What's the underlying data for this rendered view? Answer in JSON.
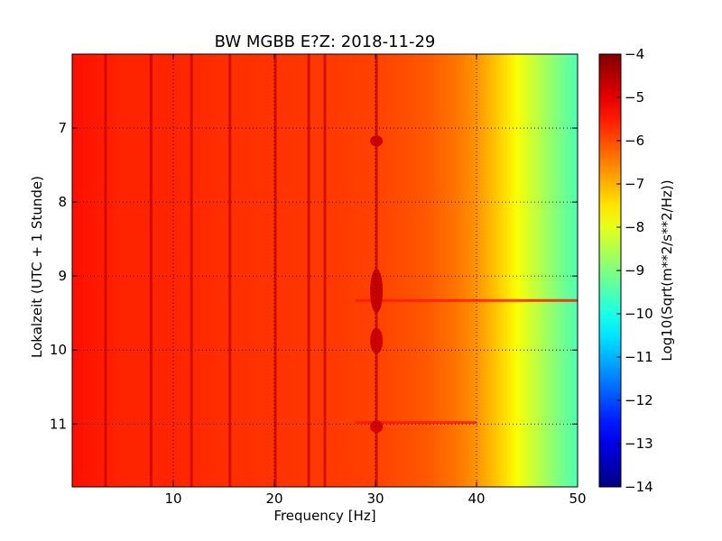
{
  "chart_data": {
    "type": "heatmap",
    "title": "BW MGBB E?Z: 2018-11-29",
    "xlabel": "Frequency [Hz]",
    "ylabel": "Lokalzeit (UTC + 1 Stunde)",
    "xlim": [
      0,
      50
    ],
    "ylim": [
      11.85,
      6.0
    ],
    "y_axis_inverted": true,
    "x_ticks": [
      10,
      20,
      30,
      40,
      50
    ],
    "y_ticks": [
      7,
      8,
      9,
      10,
      11
    ],
    "grid": true,
    "colorbar": {
      "label": "Log10(Sqrt(m**2/s**2/Hz))",
      "colormap": "jet",
      "range": [
        -14,
        -4
      ],
      "ticks": [
        -4,
        -5,
        -6,
        -7,
        -8,
        -9,
        -10,
        -11,
        -12,
        -13,
        -14
      ]
    },
    "frequency_profile": {
      "frequency_hz": [
        0,
        5,
        10,
        15,
        20,
        25,
        30,
        35,
        38,
        40,
        42,
        44,
        46,
        48,
        50
      ],
      "level_log10": [
        -5.4,
        -5.6,
        -5.6,
        -5.7,
        -5.75,
        -5.8,
        -5.9,
        -6.1,
        -6.4,
        -6.7,
        -7.2,
        -7.8,
        -8.4,
        -9.0,
        -9.5
      ]
    },
    "spectral_lines_hz": [
      3.3,
      7.8,
      11.8,
      15.6,
      20.1,
      23.4,
      25.0,
      30.1
    ],
    "transient_features": [
      {
        "freq_hz": 30.1,
        "time_start": 7.1,
        "time_end": 7.25,
        "level_log10": -4.8
      },
      {
        "freq_hz": 30.1,
        "time_start": 8.9,
        "time_end": 9.5,
        "level_log10": -4.7
      },
      {
        "freq_hz": 30.1,
        "time_start": 9.7,
        "time_end": 10.05,
        "level_log10": -4.8
      },
      {
        "freq_hz": 30.1,
        "time_start": 10.95,
        "time_end": 11.12,
        "level_log10": -4.9
      }
    ],
    "horizontal_lines": [
      {
        "time": 9.33,
        "freq_start": 28,
        "freq_end": 50,
        "level_log10": -5.5
      },
      {
        "time": 10.98,
        "freq_start": 28,
        "freq_end": 40,
        "level_log10": -5.5
      }
    ]
  }
}
